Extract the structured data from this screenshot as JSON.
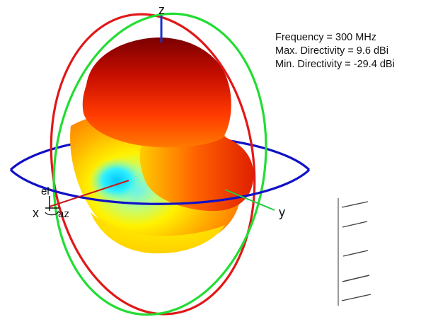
{
  "info": {
    "frequency": "Frequency = 300 MHz",
    "max_directivity": "Max. Directivity = 9.6 dBi",
    "min_directivity": "Min. Directivity = -29.4 dBi"
  },
  "axes": {
    "z": "z",
    "y": "y",
    "x": "x",
    "el": "el",
    "az": "az"
  },
  "colors": {
    "azimuth_circle": "#1010c8",
    "elevation_circle_1": "#e01818",
    "elevation_circle_2": "#22dd33",
    "z_axis": "#1a33cc",
    "y_axis": "#22cc44",
    "x_axis": "#c81818"
  },
  "pattern_colormap": [
    "#00e5ff",
    "#7fffb0",
    "#ffff00",
    "#ff9900",
    "#ff2a00",
    "#8b0000"
  ]
}
